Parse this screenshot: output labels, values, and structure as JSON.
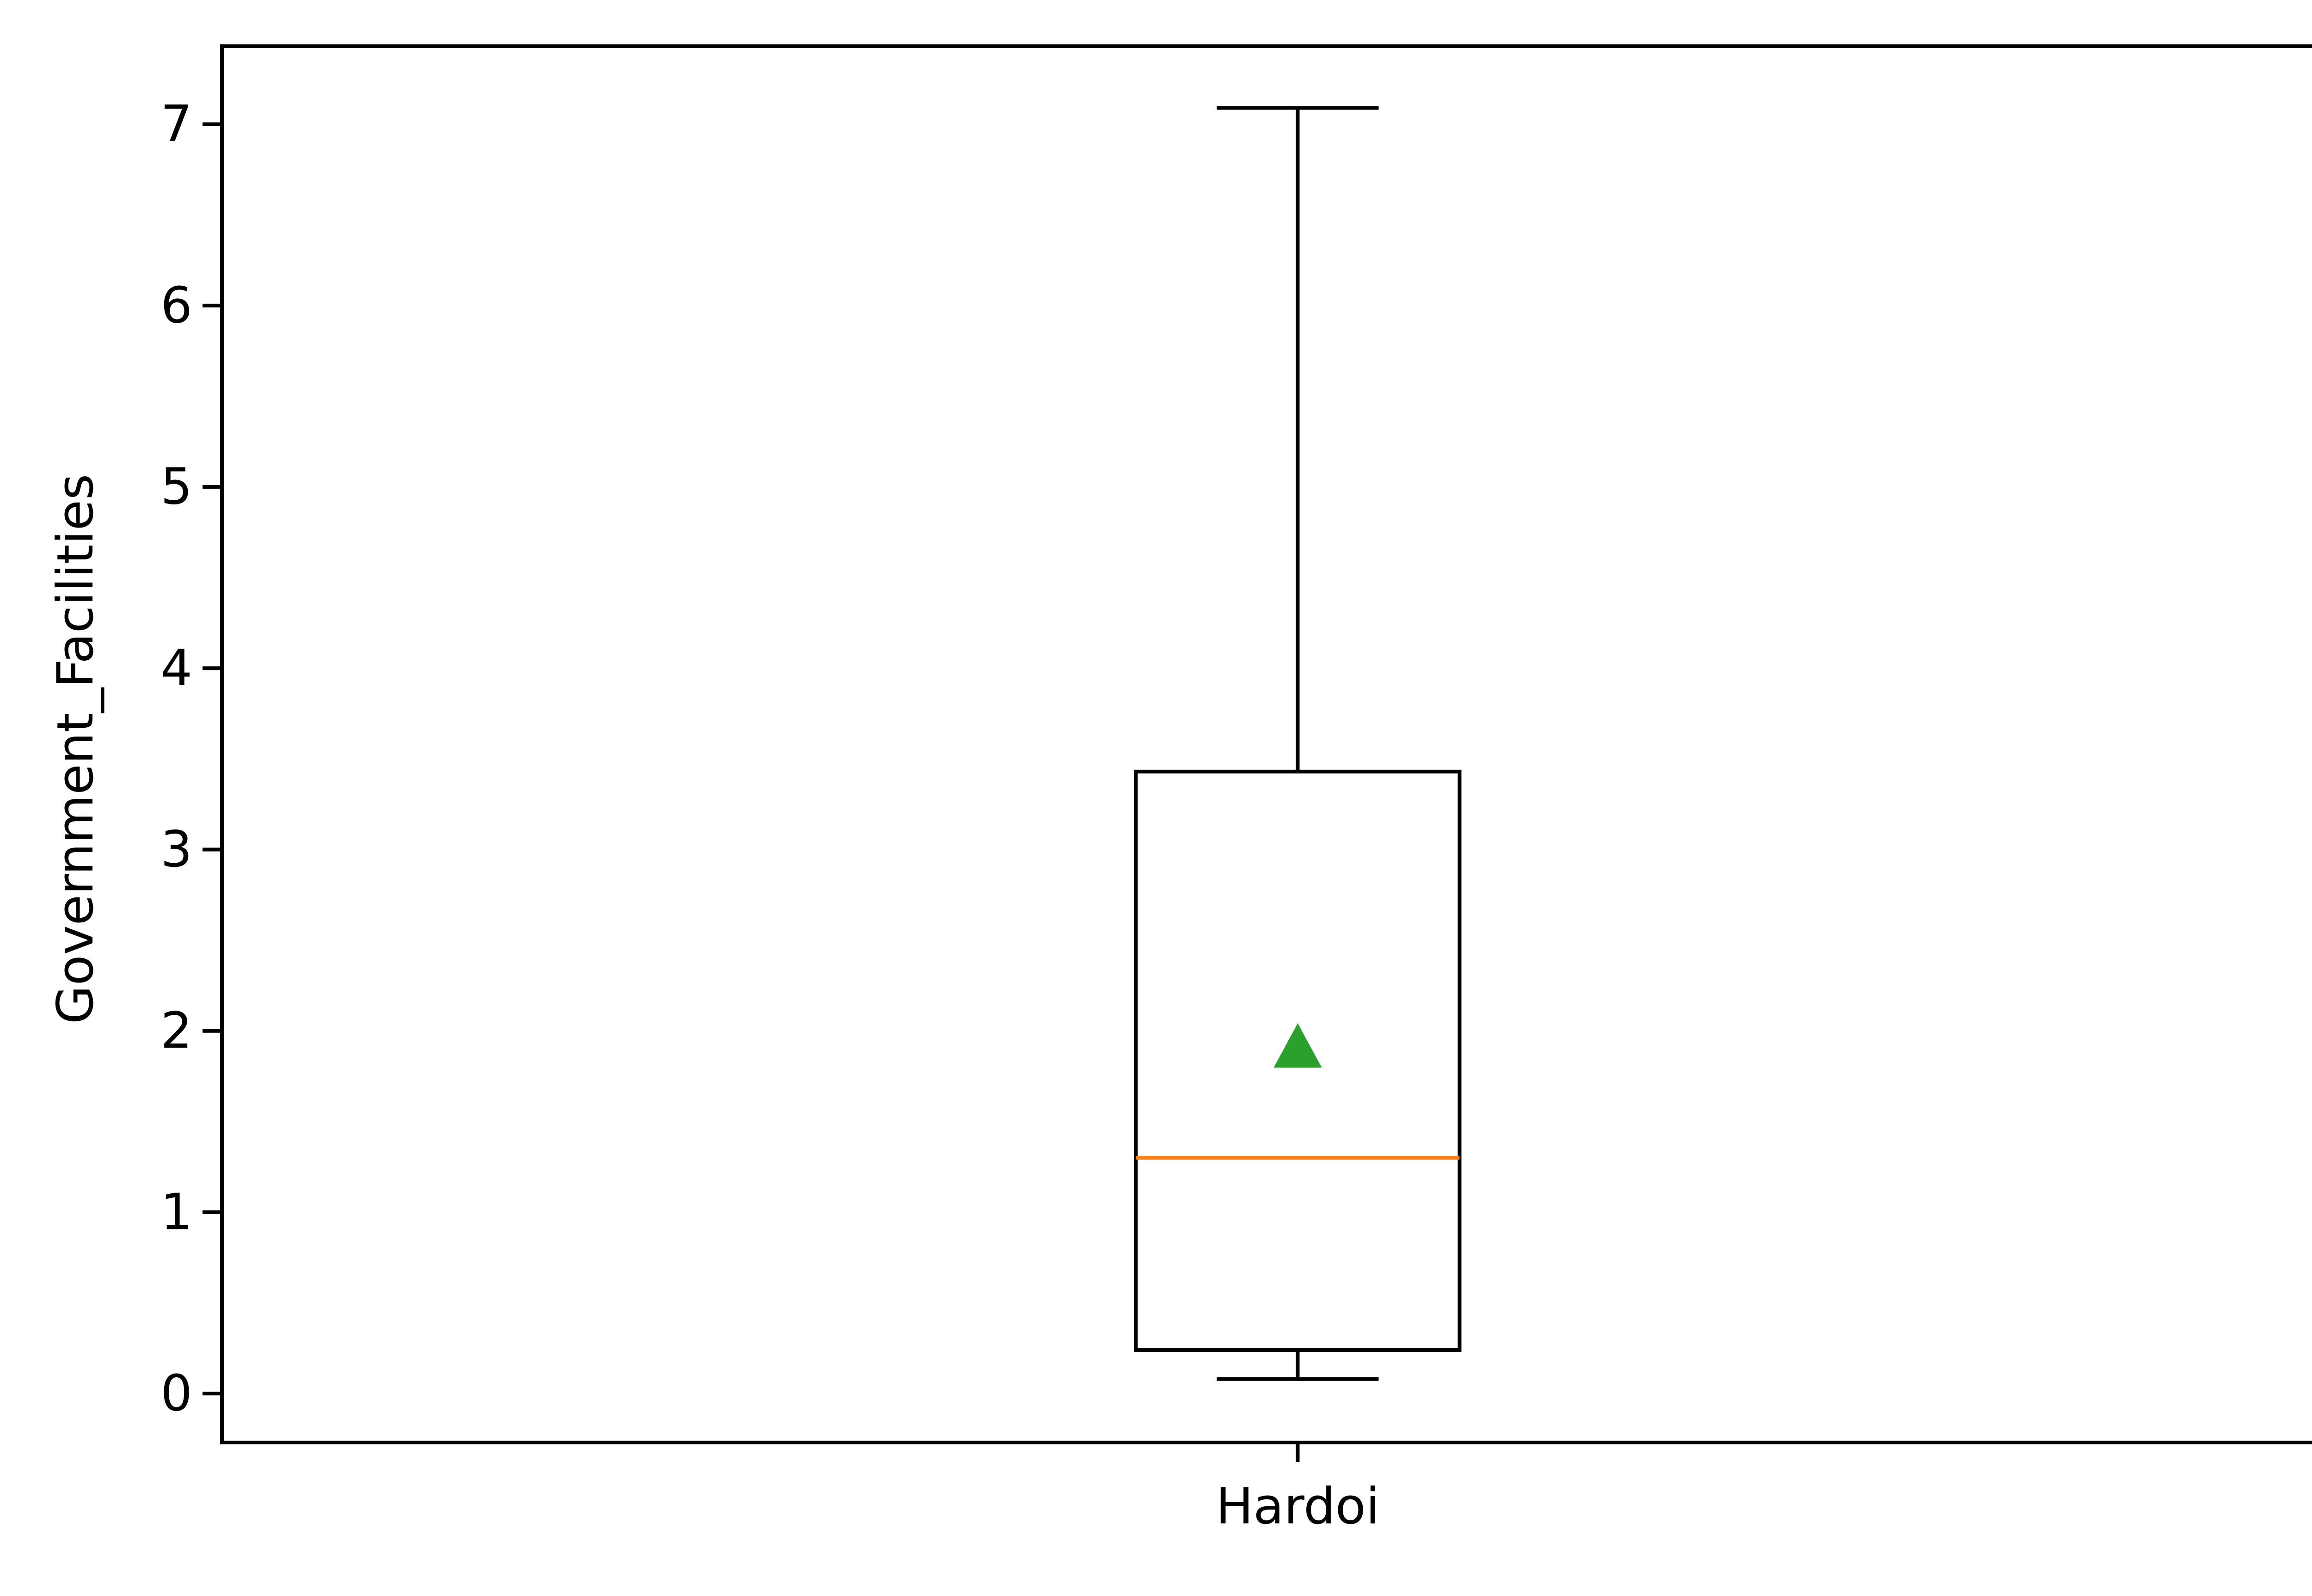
{
  "chart_data": {
    "type": "box",
    "title": "",
    "xlabel": "",
    "ylabel": "Government_Facilities",
    "ylim": [
      -0.27,
      7.43
    ],
    "yticks": [
      0,
      1,
      2,
      3,
      4,
      5,
      6,
      7
    ],
    "grid": false,
    "categories": [
      "Hardoi"
    ],
    "boxes": [
      {
        "name": "Hardoi",
        "whisker_low": 0.08,
        "q1": 0.24,
        "median": 1.3,
        "q3": 3.43,
        "whisker_high": 7.09,
        "mean": 1.91
      }
    ],
    "colors": {
      "box": "#000000",
      "median": "#ff7f0e",
      "mean": "#2ca02c"
    }
  }
}
